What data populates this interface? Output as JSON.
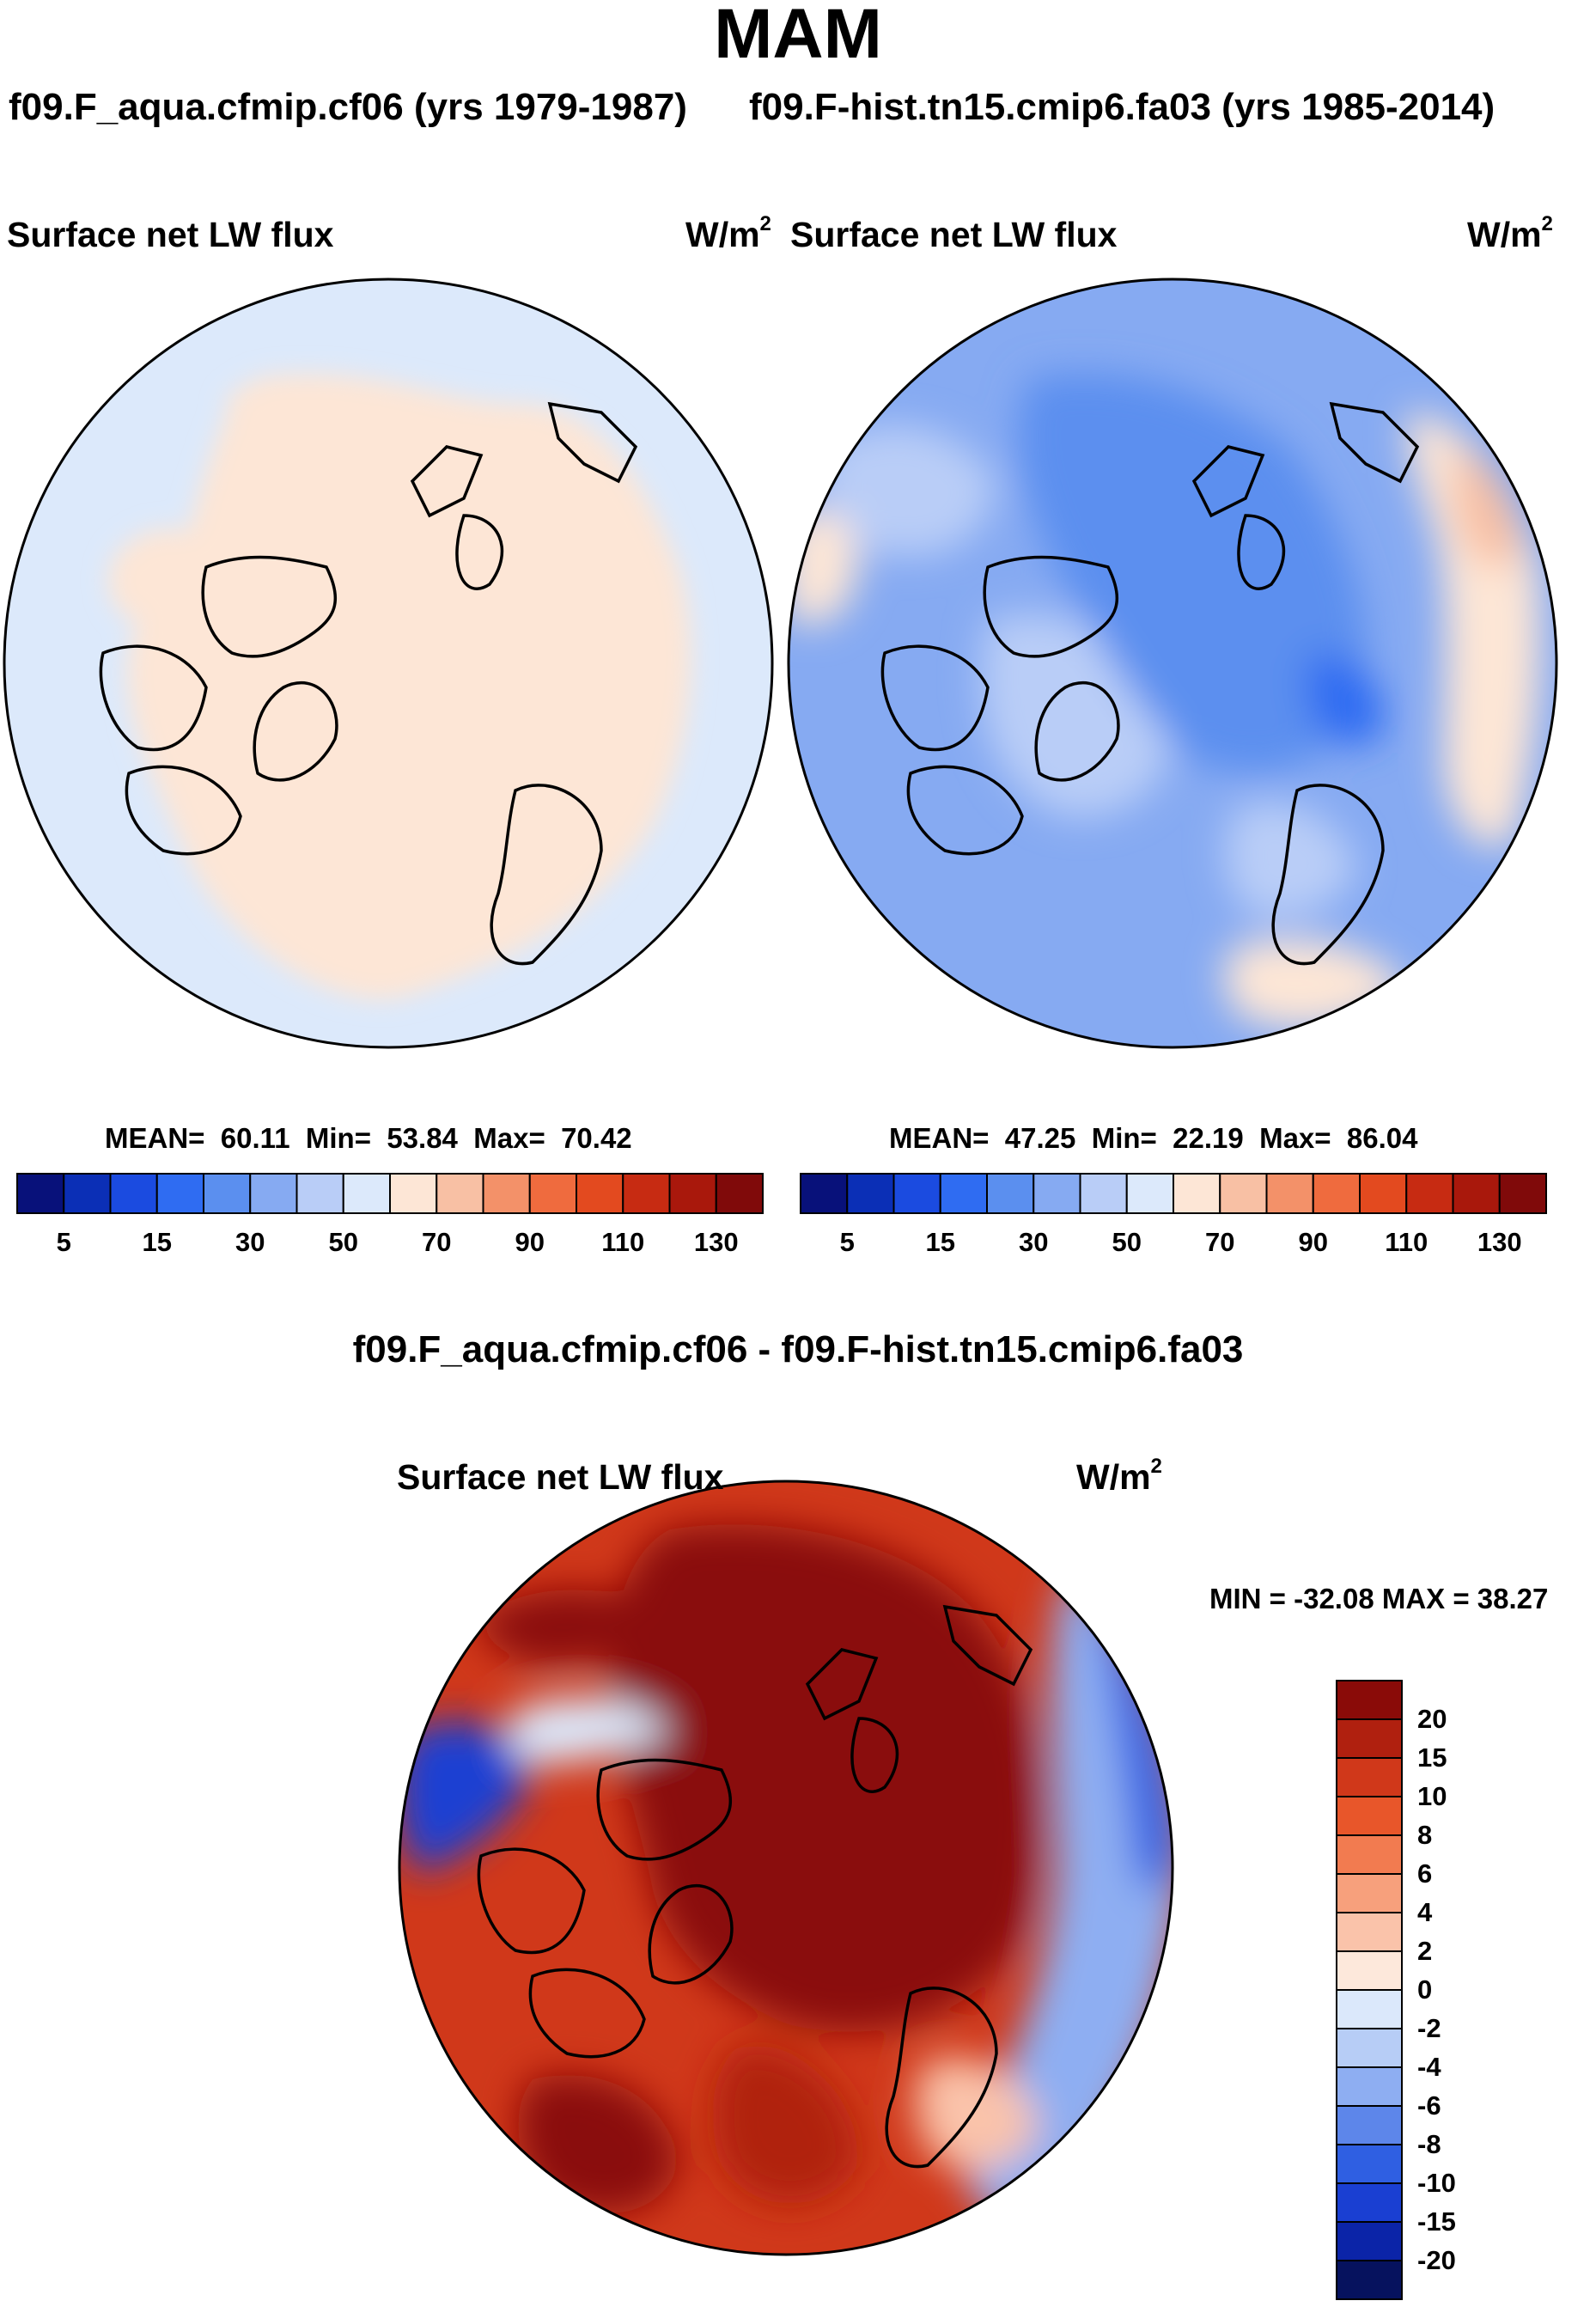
{
  "season": "MAM",
  "panels": [
    {
      "case_title": "f09.F_aqua.cfmip.cf06 (yrs 1979-1987)",
      "variable": "Surface net LW flux",
      "units": "W/m",
      "units_exp": "2",
      "stats": {
        "mean_label": "MEAN=",
        "mean": "60.11",
        "min_label": "Min=",
        "min": "53.84",
        "max_label": "Max=",
        "max": "70.42"
      }
    },
    {
      "case_title": "f09.F-hist.tn15.cmip6.fa03 (yrs 1985-2014)",
      "variable": "Surface net LW flux",
      "units": "W/m",
      "units_exp": "2",
      "stats": {
        "mean_label": "MEAN=",
        "mean": "47.25",
        "min_label": "Min=",
        "min": "22.19",
        "max_label": "Max=",
        "max": "86.04"
      }
    }
  ],
  "abs_colorbar": {
    "tick_labels": [
      "5",
      "15",
      "30",
      "50",
      "70",
      "90",
      "110",
      "130"
    ],
    "colors": [
      "#08117a",
      "#0b2fb6",
      "#1b4be0",
      "#2f6cf2",
      "#5b8fef",
      "#86aaf2",
      "#b9cdf7",
      "#dce9fb",
      "#fde6d6",
      "#f8c0a4",
      "#f39169",
      "#ef6b3e",
      "#e34a1f",
      "#c72b12",
      "#a9180c",
      "#800a0a"
    ]
  },
  "diff": {
    "title": "f09.F_aqua.cfmip.cf06 - f09.F-hist.tn15.cmip6.fa03",
    "variable": "Surface net LW flux",
    "units": "W/m",
    "units_exp": "2",
    "minmax": "MIN = -32.08 MAX =  38.27",
    "colorbar": {
      "tick_labels": [
        "20",
        "15",
        "10",
        "8",
        "6",
        "4",
        "2",
        "0",
        "-2",
        "-4",
        "-6",
        "-8",
        "-10",
        "-15",
        "-20"
      ],
      "colors": [
        "#8a0b08",
        "#b0200f",
        "#d0381a",
        "#e8562a",
        "#f27b50",
        "#f7a07c",
        "#fac3aa",
        "#fde8db",
        "#dbe8fb",
        "#b7cdf6",
        "#8eaef2",
        "#5d86ea",
        "#2f5fe2",
        "#1a3fd2",
        "#0b24a8",
        "#06125e"
      ]
    }
  },
  "chart_data": [
    {
      "type": "heatmap",
      "projection": "north-polar-stereographic",
      "title": "f09.F_aqua.cfmip.cf06 (yrs 1979-1987)",
      "variable": "Surface net LW flux",
      "units": "W/m2",
      "contour_levels": [
        5,
        10,
        15,
        20,
        30,
        40,
        50,
        60,
        70,
        80,
        90,
        100,
        110,
        120,
        130
      ],
      "mean": 60.11,
      "min": 53.84,
      "max": 70.42
    },
    {
      "type": "heatmap",
      "projection": "north-polar-stereographic",
      "title": "f09.F-hist.tn15.cmip6.fa03 (yrs 1985-2014)",
      "variable": "Surface net LW flux",
      "units": "W/m2",
      "contour_levels": [
        5,
        10,
        15,
        20,
        30,
        40,
        50,
        60,
        70,
        80,
        90,
        100,
        110,
        120,
        130
      ],
      "mean": 47.25,
      "min": 22.19,
      "max": 86.04
    },
    {
      "type": "heatmap",
      "projection": "north-polar-stereographic",
      "title": "f09.F_aqua.cfmip.cf06 - f09.F-hist.tn15.cmip6.fa03",
      "variable": "Surface net LW flux",
      "units": "W/m2",
      "contour_levels": [
        -20,
        -15,
        -10,
        -8,
        -6,
        -4,
        -2,
        0,
        2,
        4,
        6,
        8,
        10,
        15,
        20
      ],
      "min": -32.08,
      "max": 38.27
    }
  ]
}
